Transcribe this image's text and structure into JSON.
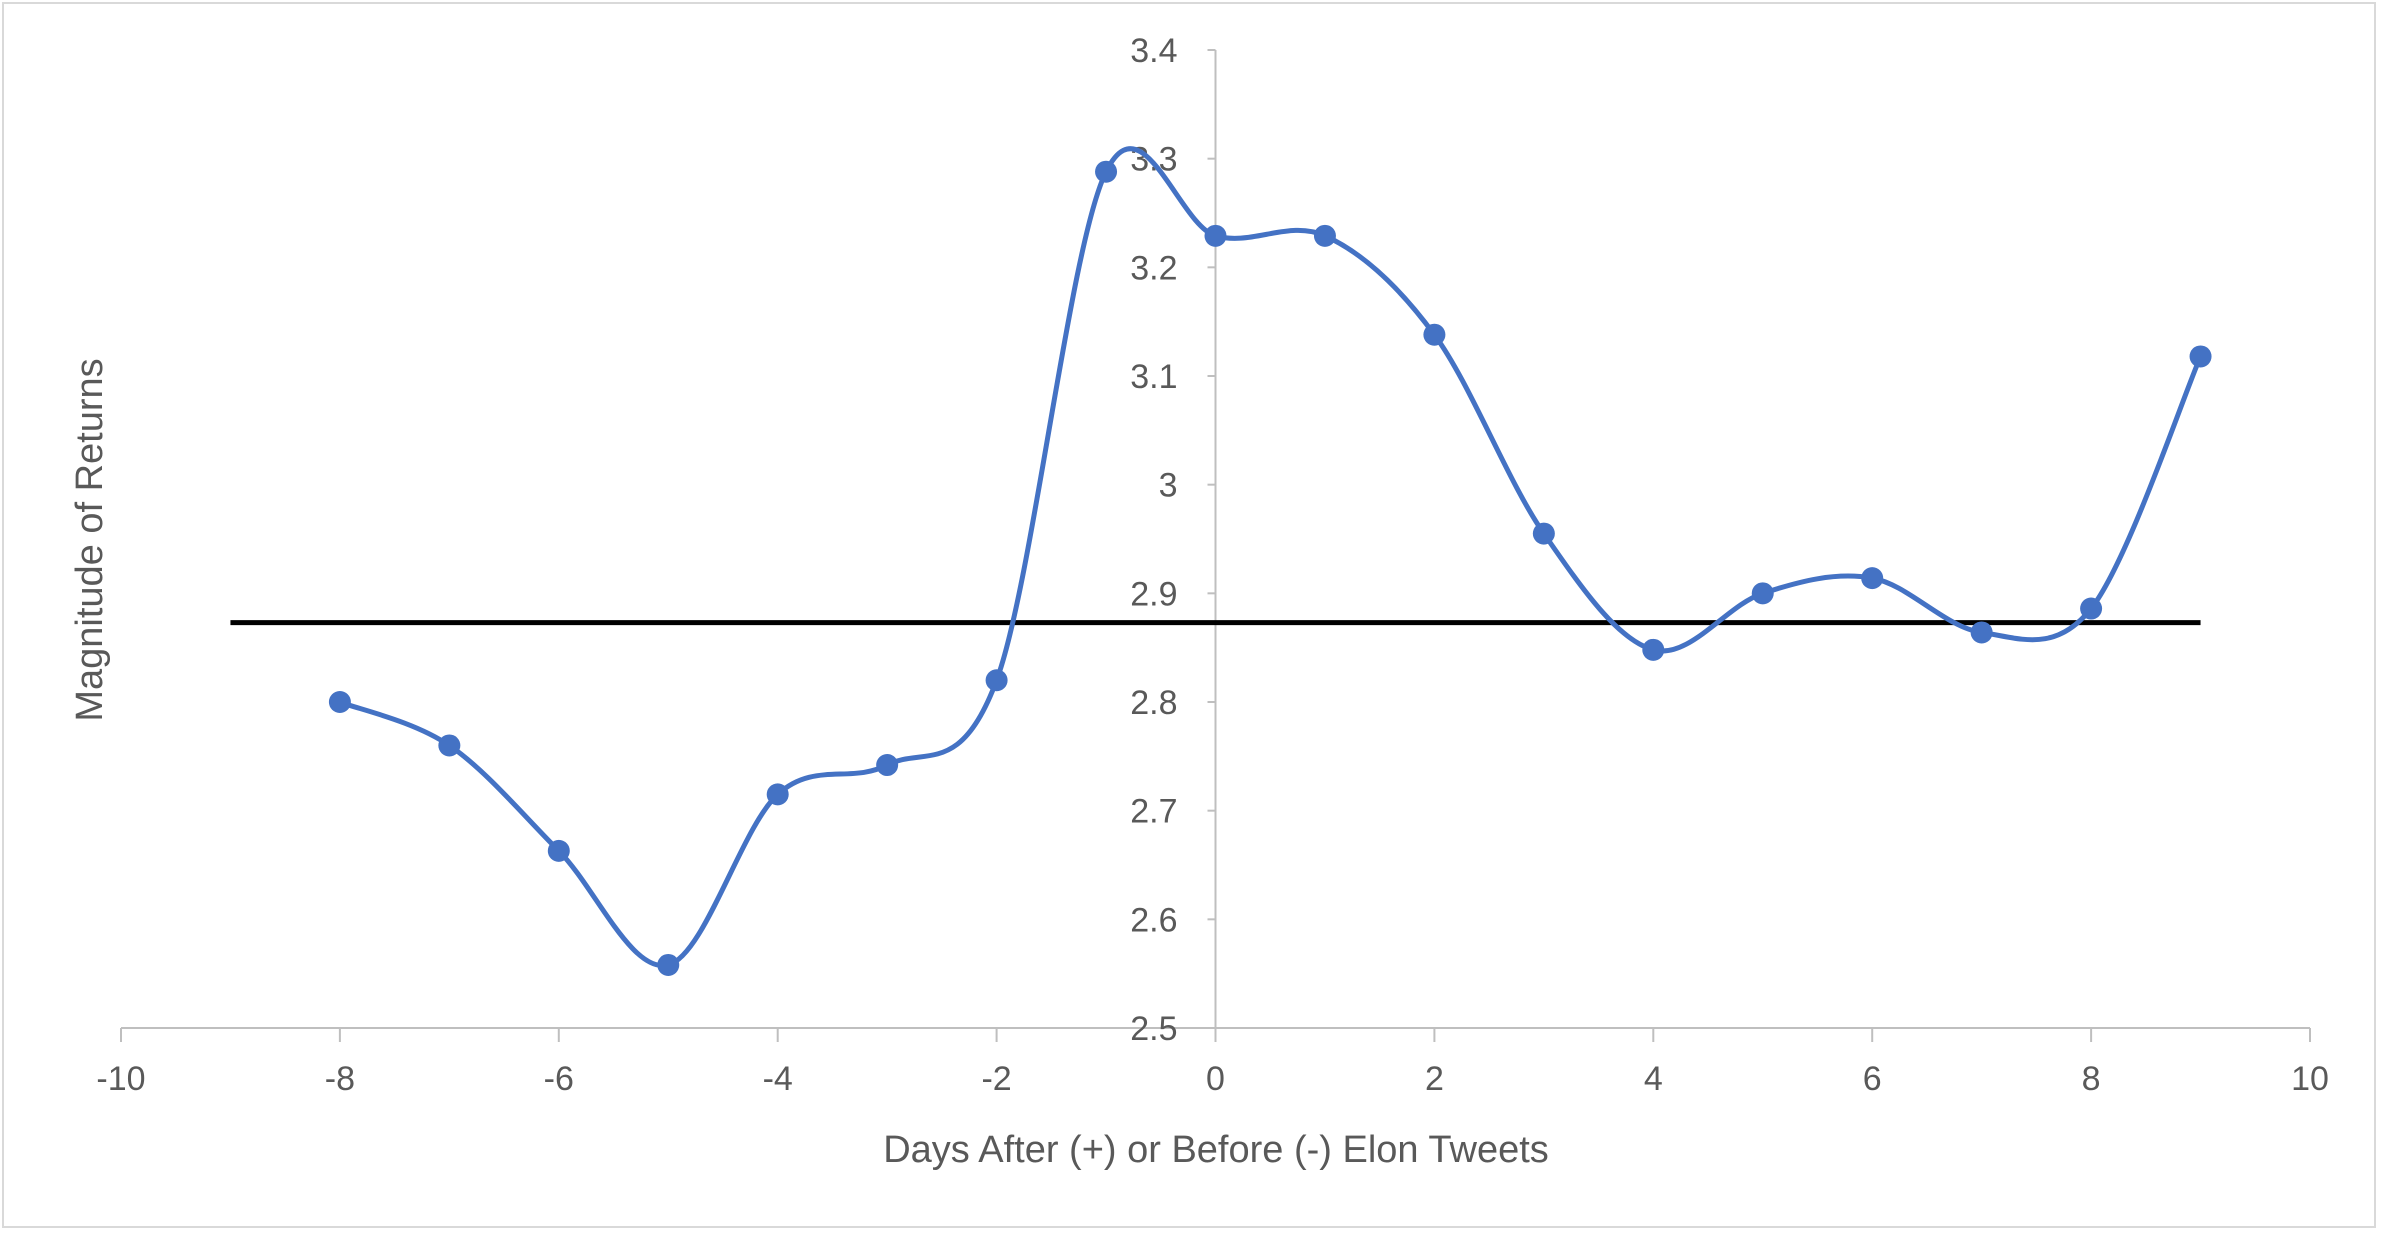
{
  "chart_data": {
    "type": "line",
    "title": "",
    "xlabel": "Days After (+) or Before (-) Elon Tweets",
    "ylabel": "Magnitude of Returns",
    "xlim": [
      -10,
      10
    ],
    "ylim": [
      2.5,
      3.4
    ],
    "x_ticks": [
      -10,
      -8,
      -6,
      -4,
      -2,
      0,
      2,
      4,
      6,
      8,
      10
    ],
    "x_tick_labels": [
      "-10",
      "-8",
      "-6",
      "-4",
      "-2",
      "0",
      "2",
      "4",
      "6",
      "8",
      "10"
    ],
    "y_ticks": [
      2.5,
      2.6,
      2.7,
      2.8,
      2.9,
      3.0,
      3.1,
      3.2,
      3.3,
      3.4
    ],
    "y_tick_labels": [
      "2.5",
      "2.6",
      "2.7",
      "2.8",
      "2.9",
      "3",
      "3.1",
      "3.2",
      "3.3",
      "3.4"
    ],
    "grid": false,
    "legend": "none",
    "series": [
      {
        "color": "#4472c4",
        "smooth": true,
        "marker": "circle",
        "x": [
          -8,
          -7,
          -6,
          -5,
          -4,
          -3,
          -2,
          -1,
          0,
          1,
          2,
          3,
          4,
          5,
          6,
          7,
          8,
          9
        ],
        "y": [
          2.8,
          2.76,
          2.663,
          2.558,
          2.715,
          2.742,
          2.82,
          3.288,
          3.229,
          3.229,
          3.138,
          2.955,
          2.848,
          2.9,
          2.914,
          2.864,
          2.886,
          3.118
        ]
      }
    ],
    "reference_lines": [
      {
        "y": 2.873,
        "x_from": -9,
        "x_to": 9,
        "color": "#000000"
      }
    ]
  }
}
